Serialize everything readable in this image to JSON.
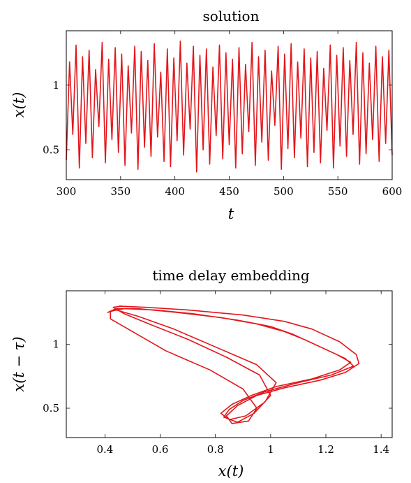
{
  "chart_data": [
    {
      "type": "line",
      "title": "solution",
      "xlabel": "t",
      "ylabel": "x(t)",
      "xlim": [
        300,
        600
      ],
      "ylim": [
        0.27,
        1.42
      ],
      "xticks": [
        "300",
        "350",
        "400",
        "450",
        "500",
        "550",
        "600"
      ],
      "yticks": [
        "0.5",
        "1"
      ],
      "line_color": "#e3161b",
      "grid": false,
      "series": [
        {
          "x": [
            300,
            303,
            306,
            309,
            312,
            315,
            318,
            321,
            324,
            327,
            330,
            333,
            336,
            339,
            342,
            345,
            348,
            351,
            354,
            357,
            360,
            363,
            366,
            369,
            372,
            375,
            378,
            381,
            384,
            387,
            390,
            393,
            396,
            399,
            402,
            405,
            408,
            411,
            414,
            417,
            420,
            423,
            426,
            429,
            432,
            435,
            438,
            441,
            444,
            447,
            450,
            453,
            456,
            459,
            462,
            465,
            468,
            471,
            474,
            477,
            480,
            483,
            486,
            489,
            492,
            495,
            498,
            501,
            504,
            507,
            510,
            513,
            516,
            519,
            522,
            525,
            528,
            531,
            534,
            537,
            540,
            543,
            546,
            549,
            552,
            555,
            558,
            561,
            564,
            567,
            570,
            573,
            576,
            579,
            582,
            585,
            588,
            591,
            594,
            597,
            600
          ],
          "y": [
            0.42,
            1.18,
            0.62,
            1.31,
            0.36,
            1.22,
            0.55,
            1.27,
            0.44,
            1.12,
            0.68,
            1.33,
            0.4,
            1.2,
            0.58,
            1.29,
            0.48,
            1.24,
            0.38,
            1.15,
            0.63,
            1.3,
            0.35,
            1.26,
            0.52,
            1.19,
            0.45,
            1.32,
            0.6,
            1.1,
            0.41,
            1.28,
            0.37,
            1.21,
            0.57,
            1.34,
            0.46,
            1.17,
            0.66,
            1.3,
            0.33,
            1.23,
            0.5,
            1.28,
            0.39,
            1.14,
            0.61,
            1.31,
            0.43,
            1.25,
            0.54,
            1.2,
            0.36,
            1.29,
            0.47,
            1.16,
            0.64,
            1.33,
            0.38,
            1.22,
            0.56,
            1.27,
            0.42,
            1.11,
            0.69,
            1.3,
            0.35,
            1.24,
            0.51,
            1.32,
            0.44,
            1.18,
            0.59,
            1.28,
            0.37,
            1.21,
            0.48,
            1.26,
            0.4,
            1.13,
            0.65,
            1.31,
            0.36,
            1.23,
            0.53,
            1.29,
            0.45,
            1.19,
            0.62,
            1.33,
            0.39,
            1.25,
            0.47,
            1.17,
            0.58,
            1.3,
            0.41,
            1.22,
            0.55,
            1.27,
            0.46
          ]
        }
      ]
    },
    {
      "type": "line",
      "title": "time delay embedding",
      "xlabel": "x(t)",
      "ylabel": "x(t − τ)",
      "xlim": [
        0.26,
        1.44
      ],
      "ylim": [
        0.27,
        1.42
      ],
      "xticks": [
        "0.4",
        "0.6",
        "0.8",
        "1",
        "1.2",
        "1.4"
      ],
      "yticks": [
        "0.5",
        "1"
      ],
      "line_color": "#e3161b",
      "grid": false,
      "series": [
        {
          "x": [
            0.45,
            0.55,
            0.7,
            0.9,
            1.05,
            1.15,
            1.25,
            1.31,
            1.32,
            1.27,
            1.18,
            1.05,
            0.95,
            0.88,
            0.84,
            0.86,
            0.92,
            0.95,
            0.9,
            0.78,
            0.62,
            0.5,
            0.42,
            0.42,
            0.47,
            0.58,
            0.72,
            0.88,
            1.0,
            1.08,
            1.16,
            1.24,
            1.29,
            1.25,
            1.15,
            1.02,
            0.93,
            0.86,
            0.82,
            0.85,
            0.91,
            0.98,
            1.02,
            0.95,
            0.8,
            0.65,
            0.52,
            0.44,
            0.41,
            0.44,
            0.52,
            0.66,
            0.82,
            0.95,
            1.05,
            1.12,
            1.2,
            1.27,
            1.3,
            1.22,
            1.1,
            0.98,
            0.9,
            0.85,
            0.83,
            0.88,
            0.94,
            1.0,
            0.96,
            0.84,
            0.7,
            0.56,
            0.47,
            0.43,
            0.46
          ],
          "y": [
            1.3,
            1.29,
            1.27,
            1.23,
            1.18,
            1.12,
            1.02,
            0.92,
            0.85,
            0.78,
            0.72,
            0.66,
            0.6,
            0.52,
            0.44,
            0.38,
            0.4,
            0.5,
            0.65,
            0.8,
            0.95,
            1.1,
            1.2,
            1.26,
            1.28,
            1.27,
            1.24,
            1.19,
            1.14,
            1.08,
            1.0,
            0.92,
            0.86,
            0.8,
            0.73,
            0.67,
            0.6,
            0.53,
            0.46,
            0.41,
            0.44,
            0.55,
            0.7,
            0.84,
            0.98,
            1.12,
            1.22,
            1.27,
            1.25,
            1.28,
            1.28,
            1.25,
            1.21,
            1.16,
            1.1,
            1.04,
            0.96,
            0.89,
            0.83,
            0.76,
            0.7,
            0.63,
            0.56,
            0.49,
            0.43,
            0.39,
            0.46,
            0.6,
            0.76,
            0.9,
            1.04,
            1.16,
            1.24,
            1.29,
            1.3
          ]
        }
      ]
    }
  ]
}
